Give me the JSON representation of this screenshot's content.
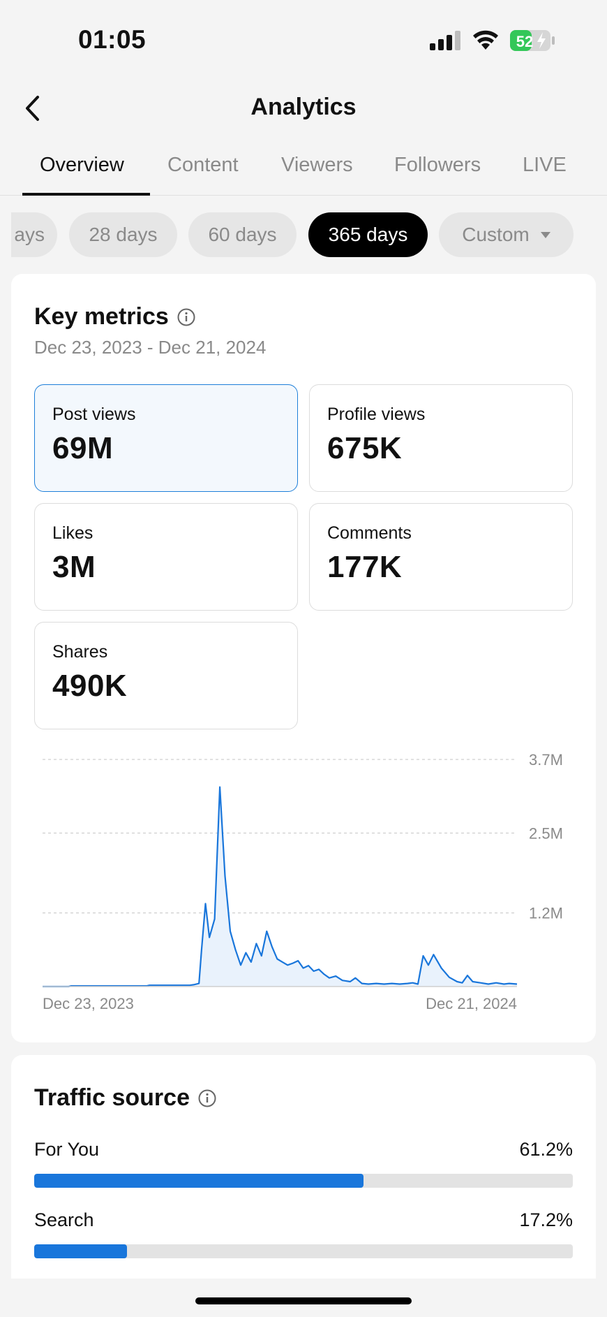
{
  "status_bar": {
    "time": "01:05",
    "battery": "52"
  },
  "nav": {
    "title": "Analytics",
    "back_icon": "chevron-left-icon"
  },
  "tabs": [
    {
      "label": "Overview",
      "active": true
    },
    {
      "label": "Content",
      "active": false
    },
    {
      "label": "Viewers",
      "active": false
    },
    {
      "label": "Followers",
      "active": false
    },
    {
      "label": "LIVE",
      "active": false
    }
  ],
  "ranges": [
    {
      "label": "ays",
      "selected": false
    },
    {
      "label": "28 days",
      "selected": false
    },
    {
      "label": "60 days",
      "selected": false
    },
    {
      "label": "365 days",
      "selected": true
    },
    {
      "label": "Custom",
      "selected": false
    }
  ],
  "key_metrics": {
    "title": "Key metrics",
    "date_range": "Dec 23, 2023 - Dec 21, 2024",
    "tiles": [
      {
        "label": "Post views",
        "value": "69M",
        "selected": true
      },
      {
        "label": "Profile views",
        "value": "675K",
        "selected": false
      },
      {
        "label": "Likes",
        "value": "3M",
        "selected": false
      },
      {
        "label": "Comments",
        "value": "177K",
        "selected": false
      },
      {
        "label": "Shares",
        "value": "490K",
        "selected": false
      }
    ]
  },
  "chart_data": {
    "type": "area",
    "title": "",
    "xlabel": "",
    "ylabel": "",
    "x_tick_labels": [
      "Dec 23, 2023",
      "Dec 21, 2024"
    ],
    "y_tick_labels": [
      "3.7M",
      "2.5M",
      "1.2M"
    ],
    "y_ticks": [
      3.7,
      2.5,
      1.2
    ],
    "ylim": [
      0,
      3.7
    ],
    "grid": true,
    "line_color": "#1976db",
    "fill_color": "#e9f2fc",
    "series": [
      {
        "x": [
          0,
          20,
          22,
          40,
          60,
          70,
          80,
          82,
          90,
          95,
          98,
          102,
          106,
          110,
          113,
          116,
          120,
          122,
          125,
          128,
          132,
          136,
          140,
          144,
          148,
          152,
          156,
          160,
          164,
          168,
          172,
          176,
          180,
          184,
          188,
          192,
          196,
          200,
          204,
          208,
          212,
          216,
          220,
          225,
          230,
          236,
          240,
          245,
          250,
          256,
          262,
          268,
          274,
          280,
          284,
          288,
          292,
          296,
          300,
          306,
          312,
          318,
          322,
          326,
          330,
          336,
          342,
          348,
          354,
          358,
          364
        ],
        "y": [
          0,
          0,
          0.01,
          0.01,
          0.01,
          0.01,
          0.01,
          0.02,
          0.02,
          0.02,
          0.02,
          0.02,
          0.02,
          0.02,
          0.02,
          0.03,
          0.05,
          0.6,
          1.35,
          0.8,
          1.1,
          3.25,
          1.8,
          0.9,
          0.6,
          0.35,
          0.55,
          0.4,
          0.7,
          0.5,
          0.9,
          0.65,
          0.45,
          0.4,
          0.35,
          0.38,
          0.42,
          0.3,
          0.34,
          0.25,
          0.28,
          0.2,
          0.14,
          0.17,
          0.1,
          0.08,
          0.14,
          0.05,
          0.04,
          0.05,
          0.04,
          0.05,
          0.04,
          0.05,
          0.06,
          0.04,
          0.5,
          0.35,
          0.52,
          0.3,
          0.15,
          0.08,
          0.06,
          0.18,
          0.08,
          0.06,
          0.04,
          0.06,
          0.04,
          0.05,
          0.04
        ]
      }
    ]
  },
  "traffic_source": {
    "title": "Traffic source",
    "items": [
      {
        "name": "For You",
        "percent_label": "61.2%",
        "value": 61.2
      },
      {
        "name": "Search",
        "percent_label": "17.2%",
        "value": 17.2
      }
    ]
  },
  "colors": {
    "accent": "#1976db",
    "selected_tile_border": "#1e7fd9"
  }
}
